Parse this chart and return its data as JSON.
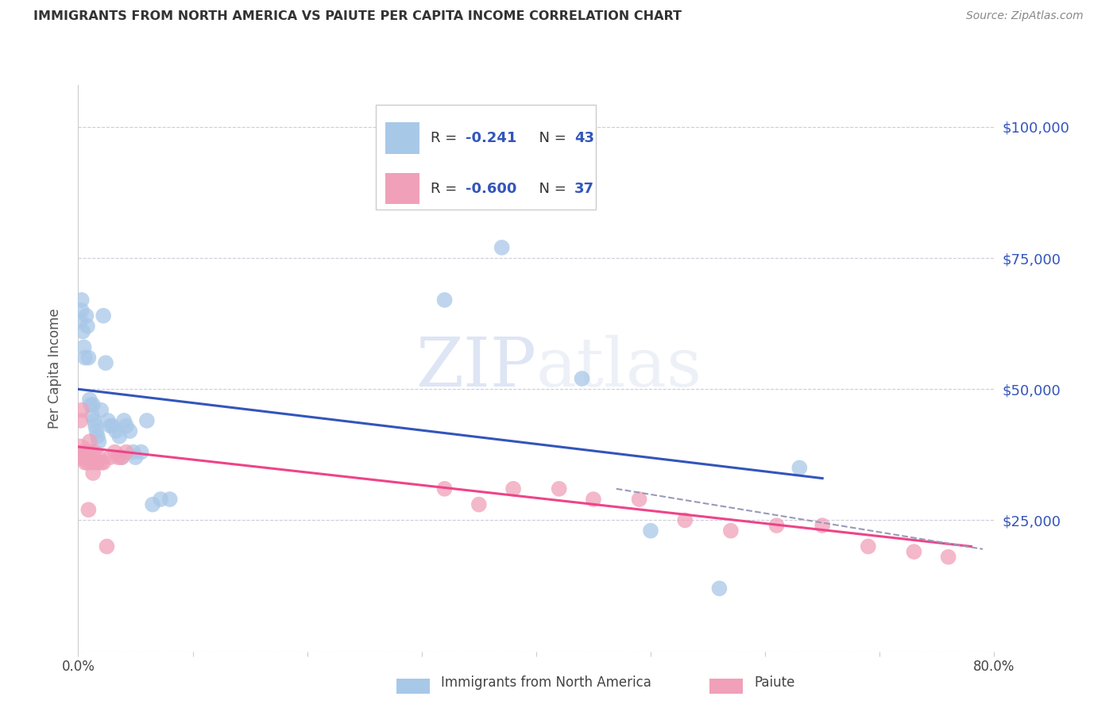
{
  "title": "IMMIGRANTS FROM NORTH AMERICA VS PAIUTE PER CAPITA INCOME CORRELATION CHART",
  "source": "Source: ZipAtlas.com",
  "ylabel": "Per Capita Income",
  "yticks": [
    0,
    25000,
    50000,
    75000,
    100000
  ],
  "ytick_labels": [
    "",
    "$25,000",
    "$50,000",
    "$75,000",
    "$100,000"
  ],
  "xmin": 0.0,
  "xmax": 0.8,
  "ymin": 0,
  "ymax": 108000,
  "blue_label": "Immigrants from North America",
  "pink_label": "Paiute",
  "blue_R": "-0.241",
  "blue_N": "43",
  "pink_R": "-0.600",
  "pink_N": "37",
  "blue_color": "#a8c8e8",
  "pink_color": "#f0a0b8",
  "blue_line_color": "#3355bb",
  "pink_line_color": "#ee4488",
  "dashed_line_color": "#9999bb",
  "legend_text_color": "#3355bb",
  "watermark_color": "#d8dff0",
  "blue_scatter_x": [
    0.002,
    0.003,
    0.003,
    0.004,
    0.005,
    0.006,
    0.007,
    0.008,
    0.009,
    0.01,
    0.011,
    0.012,
    0.013,
    0.014,
    0.015,
    0.016,
    0.017,
    0.018,
    0.02,
    0.022,
    0.024,
    0.026,
    0.028,
    0.03,
    0.033,
    0.036,
    0.038,
    0.04,
    0.042,
    0.045,
    0.048,
    0.05,
    0.055,
    0.06,
    0.065,
    0.072,
    0.08,
    0.32,
    0.37,
    0.44,
    0.5,
    0.56,
    0.63
  ],
  "blue_scatter_y": [
    63000,
    65000,
    67000,
    61000,
    58000,
    56000,
    64000,
    62000,
    56000,
    48000,
    47000,
    45000,
    47000,
    44000,
    43000,
    42000,
    41000,
    40000,
    46000,
    64000,
    55000,
    44000,
    43000,
    43000,
    42000,
    41000,
    37000,
    44000,
    43000,
    42000,
    38000,
    37000,
    38000,
    44000,
    28000,
    29000,
    29000,
    67000,
    77000,
    52000,
    23000,
    12000,
    35000
  ],
  "blue_scatter_sizes": [
    200,
    200,
    200,
    200,
    200,
    200,
    200,
    200,
    200,
    200,
    200,
    200,
    200,
    200,
    200,
    200,
    200,
    200,
    200,
    200,
    200,
    200,
    200,
    200,
    200,
    200,
    200,
    200,
    200,
    200,
    200,
    200,
    200,
    200,
    200,
    200,
    200,
    200,
    200,
    200,
    200,
    200,
    200
  ],
  "pink_scatter_x": [
    0.001,
    0.002,
    0.003,
    0.004,
    0.005,
    0.006,
    0.007,
    0.008,
    0.009,
    0.01,
    0.011,
    0.012,
    0.013,
    0.014,
    0.016,
    0.018,
    0.02,
    0.022,
    0.025,
    0.028,
    0.032,
    0.035,
    0.038,
    0.042,
    0.32,
    0.35,
    0.38,
    0.42,
    0.45,
    0.49,
    0.53,
    0.57,
    0.61,
    0.65,
    0.69,
    0.73,
    0.76
  ],
  "pink_scatter_y": [
    38000,
    44000,
    46000,
    38000,
    37000,
    36000,
    38000,
    36000,
    27000,
    40000,
    38000,
    36000,
    34000,
    38000,
    36000,
    37000,
    36000,
    36000,
    20000,
    37000,
    38000,
    37000,
    37000,
    38000,
    31000,
    28000,
    31000,
    31000,
    29000,
    29000,
    25000,
    23000,
    24000,
    24000,
    20000,
    19000,
    18000
  ],
  "pink_scatter_sizes": [
    600,
    200,
    200,
    200,
    200,
    200,
    200,
    200,
    200,
    200,
    200,
    200,
    200,
    200,
    200,
    200,
    200,
    200,
    200,
    200,
    200,
    200,
    200,
    200,
    200,
    200,
    200,
    200,
    200,
    200,
    200,
    200,
    200,
    200,
    200,
    200,
    200
  ],
  "blue_line_x0": 0.0,
  "blue_line_x1": 0.65,
  "blue_line_y0": 50000,
  "blue_line_y1": 33000,
  "pink_line_x0": 0.0,
  "pink_line_x1": 0.78,
  "pink_line_y0": 39000,
  "pink_line_y1": 20000,
  "dash_line_x0": 0.47,
  "dash_line_x1": 0.79,
  "dash_line_y0": 31000,
  "dash_line_y1": 19500
}
